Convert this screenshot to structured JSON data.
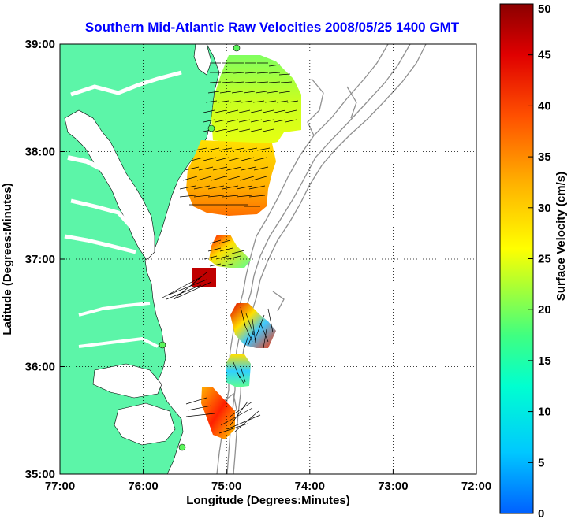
{
  "title": "Southern Mid-Atlantic Raw Velocities 2008/05/25 1400 GMT",
  "x_axis": {
    "label": "Longitude (Degrees:Minutes)",
    "ticks": [
      "77:00",
      "76:00",
      "75:00",
      "74:00",
      "73:00",
      "72:00"
    ],
    "range": [
      -77,
      -72
    ]
  },
  "y_axis": {
    "label": "Latitude (Degrees:Minutes)",
    "ticks": [
      "39:00",
      "38:00",
      "37:00",
      "36:00",
      "35:00"
    ],
    "range": [
      35,
      39
    ]
  },
  "colorbar": {
    "label": "Surface Velocity (cm/s)",
    "ticks": [
      "50",
      "45",
      "40",
      "35",
      "30",
      "25",
      "20",
      "15",
      "10",
      "5",
      "0"
    ],
    "range": [
      0,
      50
    ],
    "colormap": [
      "#0060ff",
      "#00c8ff",
      "#00ffd0",
      "#40ff80",
      "#b0ff30",
      "#ffff00",
      "#ffb000",
      "#ff5000",
      "#e00000",
      "#8b0000"
    ]
  },
  "colors": {
    "title": "#0000ff",
    "land": "#5cf5a8",
    "bathymetry": "#909090",
    "grid": "#000000"
  },
  "grid": "dotted",
  "chart_data": {
    "type": "velocity-field-map",
    "regions": [
      {
        "name": "",
        "lon": [
          -75.1,
          -74.1
        ],
        "lat": [
          38.3,
          38.95
        ],
        "speed_cm_s": [
          20,
          28
        ]
      },
      {
        "name": "",
        "lon": [
          -75.5,
          -74.3
        ],
        "lat": [
          37.6,
          38.3
        ],
        "speed_cm_s": [
          25,
          38
        ]
      },
      {
        "name": "",
        "lon": [
          -75.4,
          -74.75
        ],
        "lat": [
          36.85,
          37.3
        ],
        "speed_cm_s": [
          22,
          45
        ]
      },
      {
        "name": "",
        "lon": [
          -75.0,
          -74.4
        ],
        "lat": [
          36.2,
          36.6
        ],
        "speed_cm_s": [
          12,
          45
        ]
      },
      {
        "name": "",
        "lon": [
          -75.05,
          -74.75
        ],
        "lat": [
          35.85,
          36.15
        ],
        "speed_cm_s": [
          10,
          28
        ]
      },
      {
        "name": "",
        "lon": [
          -75.5,
          -74.9
        ],
        "lat": [
          35.35,
          35.8
        ],
        "speed_cm_s": [
          15,
          45
        ]
      }
    ],
    "stations": [
      {
        "lon": -74.8,
        "lat": 39.0
      },
      {
        "lon": -75.1,
        "lat": 38.2
      },
      {
        "lon": -75.7,
        "lat": 36.2
      },
      {
        "lon": -75.5,
        "lat": 35.25
      }
    ]
  }
}
